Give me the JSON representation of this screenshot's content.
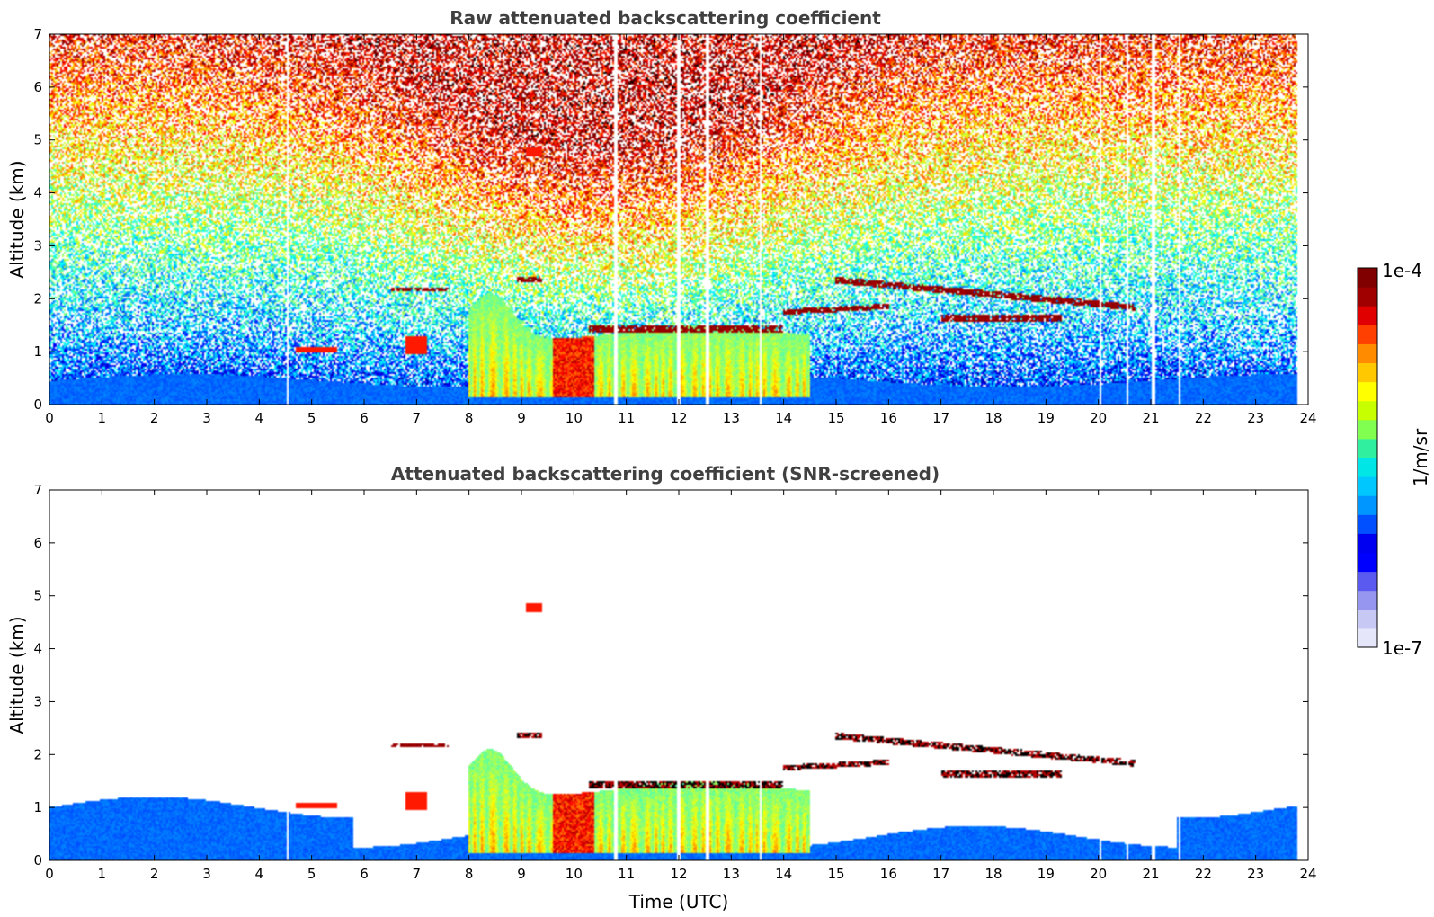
{
  "chart_data": [
    {
      "type": "heatmap",
      "title": "Raw attenuated backscattering coefficient",
      "xlabel": "",
      "ylabel": "Altitude (km)",
      "xlim": [
        0,
        24
      ],
      "ylim": [
        0,
        7
      ],
      "xticks": [
        0,
        1,
        2,
        3,
        4,
        5,
        6,
        7,
        8,
        9,
        10,
        11,
        12,
        13,
        14,
        15,
        16,
        17,
        18,
        19,
        20,
        21,
        22,
        23,
        24
      ],
      "yticks": [
        0,
        1,
        2,
        3,
        4,
        5,
        6,
        7
      ],
      "colorscale": "jet",
      "noisy": true,
      "features": [
        {
          "name": "boundary layer",
          "x": [
            0,
            23.8
          ],
          "y": [
            0,
            0.5
          ]
        },
        {
          "name": "cloud layer",
          "x": [
            6.5,
            7.6
          ],
          "y": [
            2.15,
            2.2
          ]
        },
        {
          "name": "cloud layer",
          "x": [
            8.9,
            9.4
          ],
          "y": [
            2.3,
            2.4
          ]
        },
        {
          "name": "cloud layer",
          "x": [
            10.3,
            14.0
          ],
          "y": [
            1.35,
            1.5
          ]
        },
        {
          "name": "cloud layer",
          "x": [
            14.0,
            16.0
          ],
          "y": [
            1.7,
            1.9
          ]
        },
        {
          "name": "cloud layer",
          "x": [
            15.0,
            20.7
          ],
          "y": [
            1.8,
            2.4
          ]
        },
        {
          "name": "cloud layer",
          "x": [
            17.0,
            19.3
          ],
          "y": [
            1.55,
            1.7
          ]
        },
        {
          "name": "aerosol plume",
          "x": [
            8.0,
            14.5
          ],
          "y": [
            0.3,
            2.3
          ]
        },
        {
          "name": "small layer",
          "x": [
            4.7,
            5.5
          ],
          "y": [
            1.0,
            1.08
          ]
        },
        {
          "name": "small layer",
          "x": [
            6.8,
            7.2
          ],
          "y": [
            0.95,
            1.3
          ]
        },
        {
          "name": "elevated layer",
          "x": [
            9.1,
            9.4
          ],
          "y": [
            4.7,
            4.85
          ]
        }
      ]
    },
    {
      "type": "heatmap",
      "title": "Attenuated backscattering coefficient (SNR-screened)",
      "xlabel": "Time (UTC)",
      "ylabel": "Altitude (km)",
      "xlim": [
        0,
        24
      ],
      "ylim": [
        0,
        7
      ],
      "xticks": [
        0,
        1,
        2,
        3,
        4,
        5,
        6,
        7,
        8,
        9,
        10,
        11,
        12,
        13,
        14,
        15,
        16,
        17,
        18,
        19,
        20,
        21,
        22,
        23,
        24
      ],
      "yticks": [
        0,
        1,
        2,
        3,
        4,
        5,
        6,
        7
      ],
      "colorscale": "jet",
      "noisy": false,
      "features": [
        {
          "name": "boundary layer",
          "x": [
            0,
            23.8
          ],
          "y": [
            0,
            1.05
          ]
        },
        {
          "name": "cloud layer",
          "x": [
            6.5,
            7.6
          ],
          "y": [
            2.15,
            2.2
          ]
        },
        {
          "name": "cloud layer",
          "x": [
            8.9,
            9.4
          ],
          "y": [
            2.3,
            2.4
          ]
        },
        {
          "name": "cloud layer",
          "x": [
            10.3,
            14.0
          ],
          "y": [
            1.35,
            1.5
          ]
        },
        {
          "name": "cloud layer",
          "x": [
            14.0,
            16.0
          ],
          "y": [
            1.7,
            1.9
          ]
        },
        {
          "name": "cloud layer",
          "x": [
            15.0,
            20.7
          ],
          "y": [
            1.8,
            2.4
          ]
        },
        {
          "name": "cloud layer",
          "x": [
            17.0,
            19.3
          ],
          "y": [
            1.55,
            1.7
          ]
        },
        {
          "name": "aerosol plume",
          "x": [
            8.0,
            14.5
          ],
          "y": [
            0.3,
            2.3
          ]
        },
        {
          "name": "small layer",
          "x": [
            4.7,
            5.5
          ],
          "y": [
            1.0,
            1.08
          ]
        },
        {
          "name": "small layer",
          "x": [
            6.8,
            7.2
          ],
          "y": [
            0.95,
            1.3
          ]
        },
        {
          "name": "elevated layer",
          "x": [
            9.1,
            9.4
          ],
          "y": [
            4.7,
            4.85
          ]
        }
      ]
    }
  ],
  "colorbar": {
    "label": "1/m/sr",
    "max_label": "1e-4",
    "min_label": "1e-7",
    "min_value": 1e-07,
    "max_value": 0.0001,
    "scale": "log",
    "colors": [
      "#e6e6fa",
      "#c8c8f5",
      "#9696f0",
      "#5a5af0",
      "#0000ff",
      "#0000f0",
      "#0050ff",
      "#0096ff",
      "#00c8ff",
      "#00e6e6",
      "#30f0a0",
      "#80ff50",
      "#c8ff00",
      "#ffff00",
      "#ffc800",
      "#ff8c00",
      "#ff4000",
      "#e00000",
      "#a00000",
      "#800000"
    ]
  }
}
